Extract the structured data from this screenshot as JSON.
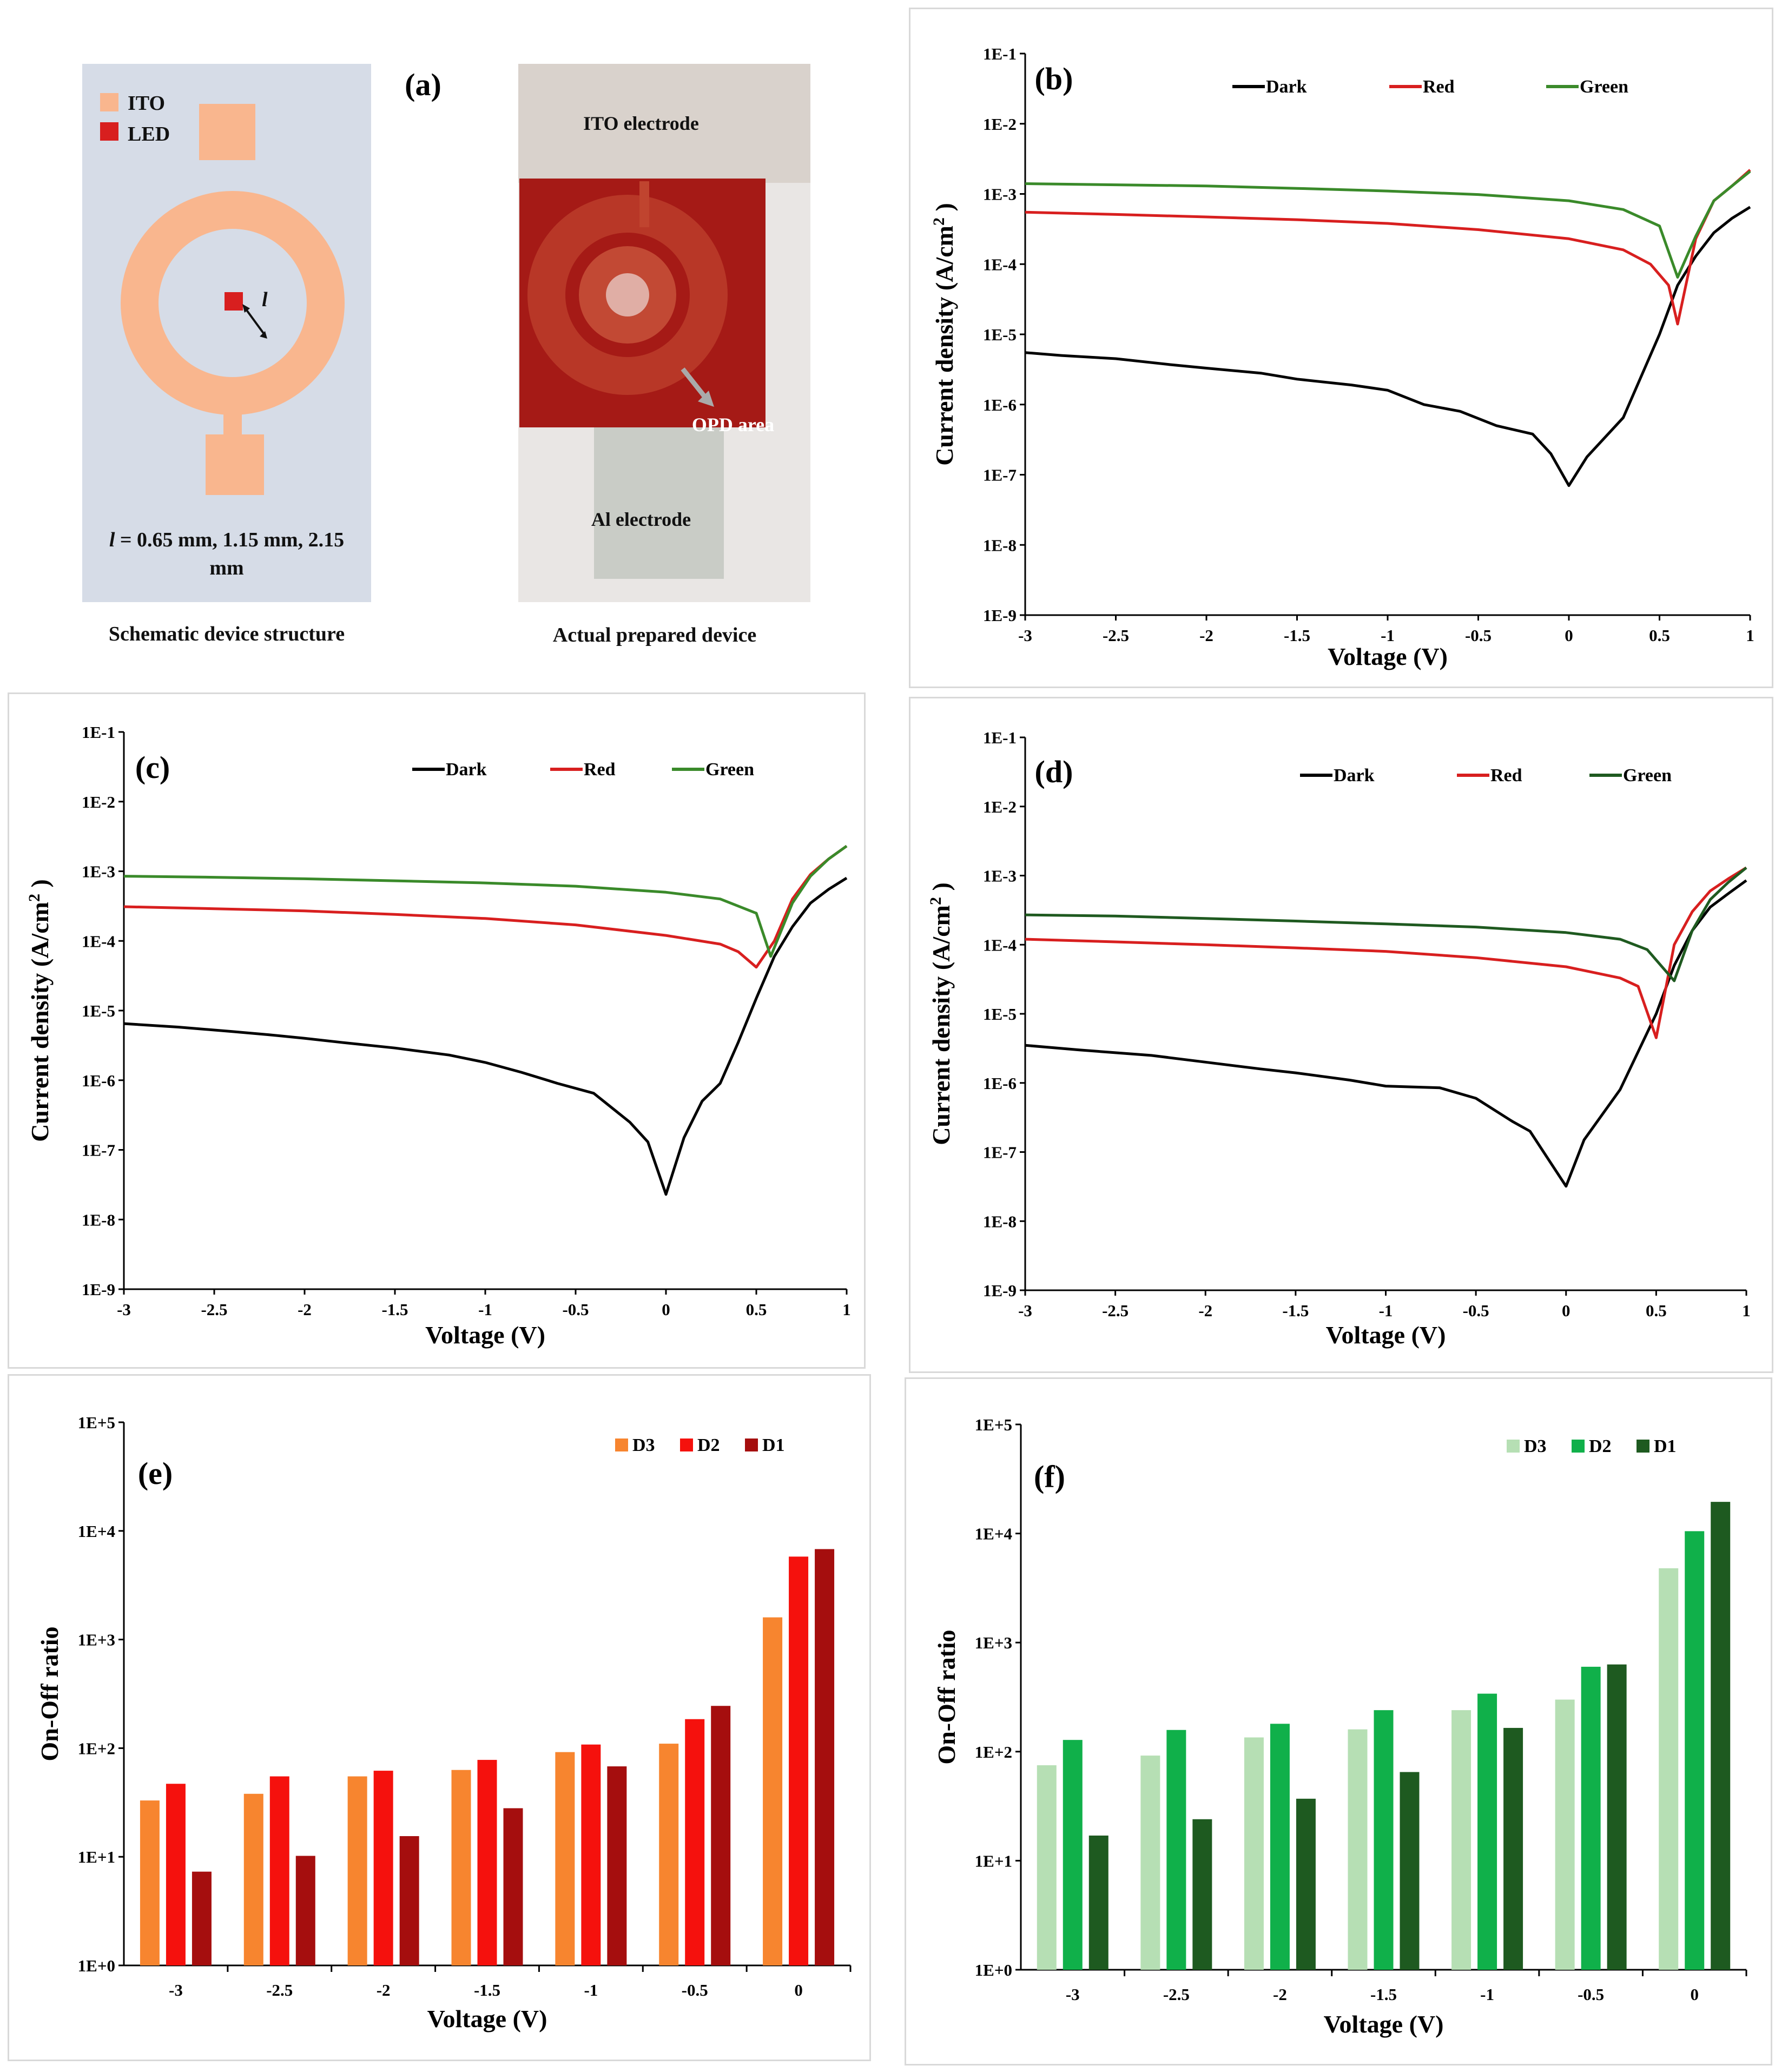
{
  "panel_a": {
    "label": "(a)",
    "legend_ito": "ITO",
    "legend_led": "LED",
    "dim_label": "l",
    "dim_text_line1": "l = 0.65 mm, 1.15 mm, 2.15",
    "dim_text_line2": "mm",
    "schematic_caption": "Schematic device structure",
    "photo_caption": "Actual prepared device",
    "photo_ito_label": "ITO electrode",
    "photo_opd_label": "OPD area",
    "photo_al_label": "Al electrode",
    "colors": {
      "ito": "#f9b68e",
      "led": "#d81f1f",
      "bg": "#d6dce7"
    }
  },
  "chart_data": [
    {
      "id": "b",
      "type": "line",
      "label": "(b)",
      "xlabel": "Voltage (V)",
      "ylabel": "Current density  (A/cm",
      "ylabel_sup": "2",
      "ylabel_close": " )",
      "xlim": [
        -3,
        1
      ],
      "xticks": [
        -3,
        -2.5,
        -2,
        -1.5,
        -1,
        -0.5,
        0,
        0.5,
        1
      ],
      "xtick_labels": [
        "-3",
        "-2.5",
        "-2",
        "-1.5",
        "-1",
        "-0.5",
        "0",
        "0.5",
        "1"
      ],
      "ytick_labels": [
        "1E-9",
        "1E-8",
        "1E-7",
        "1E-6",
        "1E-5",
        "1E-4",
        "1E-3",
        "1E-2",
        "1E-1"
      ],
      "ylim_log": [
        -9,
        -1
      ],
      "yscale": "log",
      "series": [
        {
          "name": "Dark",
          "color": "#000000",
          "x": [
            -3,
            -2.8,
            -2.5,
            -2.2,
            -2,
            -1.7,
            -1.5,
            -1.2,
            -1,
            -0.8,
            -0.6,
            -0.4,
            -0.2,
            -0.1,
            0,
            0.1,
            0.3,
            0.5,
            0.6,
            0.7,
            0.8,
            0.9,
            1.0
          ],
          "y": [
            5.5e-06,
            5e-06,
            4.5e-06,
            3.7e-06,
            3.3e-06,
            2.8e-06,
            2.3e-06,
            1.9e-06,
            1.6e-06,
            1e-06,
            8e-07,
            5e-07,
            3.8e-07,
            2e-07,
            7e-08,
            1.8e-07,
            6.5e-07,
            1e-05,
            5e-05,
            0.00013,
            0.00028,
            0.00045,
            0.00065
          ]
        },
        {
          "name": "Red",
          "color": "#d81f1f",
          "x": [
            -3,
            -2.5,
            -2,
            -1.5,
            -1,
            -0.5,
            0,
            0.3,
            0.45,
            0.55,
            0.6,
            0.7,
            0.8,
            0.9,
            1.0
          ],
          "y": [
            0.00055,
            0.00051,
            0.00047,
            0.00043,
            0.00038,
            0.00031,
            0.00023,
            0.00016,
            0.0001,
            5e-05,
            1.4e-05,
            0.00023,
            0.0008,
            0.0013,
            0.0022
          ]
        },
        {
          "name": "Green",
          "color": "#3a8a2a",
          "x": [
            -3,
            -2.5,
            -2,
            -1.5,
            -1,
            -0.5,
            0,
            0.3,
            0.5,
            0.6,
            0.7,
            0.8,
            0.9,
            1.0
          ],
          "y": [
            0.0014,
            0.00135,
            0.0013,
            0.0012,
            0.0011,
            0.00098,
            0.0008,
            0.0006,
            0.00035,
            6.5e-05,
            0.00025,
            0.0008,
            0.0013,
            0.0021
          ]
        }
      ]
    },
    {
      "id": "c",
      "type": "line",
      "label": "(c)",
      "xlabel": "Voltage (V)",
      "ylabel": "Current density  (A/cm",
      "ylabel_sup": "2",
      "ylabel_close": " )",
      "xlim": [
        -3,
        1
      ],
      "xticks": [
        -3,
        -2.5,
        -2,
        -1.5,
        -1,
        -0.5,
        0,
        0.5,
        1
      ],
      "xtick_labels": [
        "-3",
        "-2.5",
        "-2",
        "-1.5",
        "-1",
        "-0.5",
        "0",
        "0.5",
        "1"
      ],
      "ytick_labels": [
        "1E-9",
        "1E-8",
        "1E-7",
        "1E-6",
        "1E-5",
        "1E-4",
        "1E-3",
        "1E-2",
        "1E-1"
      ],
      "ylim_log": [
        -9,
        -1
      ],
      "yscale": "log",
      "series": [
        {
          "name": "Dark",
          "color": "#000000",
          "x": [
            -3,
            -2.7,
            -2.4,
            -2.2,
            -2,
            -1.8,
            -1.5,
            -1.2,
            -1,
            -0.8,
            -0.6,
            -0.4,
            -0.2,
            -0.1,
            0,
            0.1,
            0.2,
            0.3,
            0.4,
            0.5,
            0.6,
            0.7,
            0.8,
            0.9,
            1.0
          ],
          "y": [
            6.5e-06,
            5.8e-06,
            5e-06,
            4.5e-06,
            4e-06,
            3.5e-06,
            2.9e-06,
            2.3e-06,
            1.8e-06,
            1.3e-06,
            9e-07,
            6.5e-07,
            2.5e-07,
            1.3e-07,
            2.3e-08,
            1.5e-07,
            5e-07,
            9e-07,
            3.5e-06,
            1.5e-05,
            6e-05,
            0.00016,
            0.00035,
            0.00055,
            0.0008
          ]
        },
        {
          "name": "Red",
          "color": "#d81f1f",
          "x": [
            -3,
            -2.5,
            -2,
            -1.5,
            -1,
            -0.5,
            0,
            0.3,
            0.4,
            0.5,
            0.6,
            0.7,
            0.8,
            0.9,
            1.0
          ],
          "y": [
            0.00031,
            0.00029,
            0.00027,
            0.00024,
            0.00021,
            0.00017,
            0.00012,
            9e-05,
            7e-05,
            4.2e-05,
            0.0001,
            0.0004,
            0.0009,
            0.0015,
            0.0023
          ]
        },
        {
          "name": "Green",
          "color": "#3a8a2a",
          "x": [
            -3,
            -2.5,
            -2,
            -1.5,
            -1,
            -0.5,
            0,
            0.3,
            0.5,
            0.58,
            0.7,
            0.8,
            0.9,
            1.0
          ],
          "y": [
            0.00085,
            0.00082,
            0.00078,
            0.00073,
            0.00068,
            0.00061,
            0.0005,
            0.0004,
            0.00025,
            6e-05,
            0.00035,
            0.00085,
            0.0015,
            0.0023
          ]
        }
      ]
    },
    {
      "id": "d",
      "type": "line",
      "label": "(d)",
      "xlabel": "Voltage (V)",
      "ylabel": "Current density  (A/cm",
      "ylabel_sup": "2",
      "ylabel_close": " )",
      "xlim": [
        -3,
        1
      ],
      "xticks": [
        -3,
        -2.5,
        -2,
        -1.5,
        -1,
        -0.5,
        0,
        0.5,
        1
      ],
      "xtick_labels": [
        "-3",
        "-2.5",
        "-2",
        "-1.5",
        "-1",
        "-0.5",
        "0",
        "0.5",
        "1"
      ],
      "ytick_labels": [
        "1E-9",
        "1E-8",
        "1E-7",
        "1E-6",
        "1E-5",
        "1E-4",
        "1E-3",
        "1E-2",
        "1E-1"
      ],
      "ylim_log": [
        -9,
        -1
      ],
      "yscale": "log",
      "series": [
        {
          "name": "Dark",
          "color": "#000000",
          "x": [
            -3,
            -2.7,
            -2.3,
            -2,
            -1.7,
            -1.5,
            -1.2,
            -1,
            -0.7,
            -0.5,
            -0.3,
            -0.2,
            -0.1,
            0,
            0.1,
            0.3,
            0.5,
            0.6,
            0.7,
            0.8,
            0.9,
            1.0
          ],
          "y": [
            3.5e-06,
            3e-06,
            2.5e-06,
            2e-06,
            1.6e-06,
            1.4e-06,
            1.1e-06,
            9e-07,
            8.5e-07,
            6e-07,
            2.8e-07,
            2e-07,
            8e-08,
            3.2e-08,
            1.5e-07,
            8e-07,
            1e-05,
            5e-05,
            0.00016,
            0.00035,
            0.00055,
            0.00085
          ]
        },
        {
          "name": "Red",
          "color": "#d81f1f",
          "x": [
            -3,
            -2.5,
            -2,
            -1.5,
            -1,
            -0.5,
            0,
            0.3,
            0.4,
            0.5,
            0.6,
            0.7,
            0.8,
            0.9,
            1.0
          ],
          "y": [
            0.00012,
            0.00011,
            0.0001,
            9e-05,
            8e-05,
            6.5e-05,
            4.8e-05,
            3.3e-05,
            2.5e-05,
            4.5e-06,
            0.0001,
            0.0003,
            0.0006,
            0.0009,
            0.0013
          ]
        },
        {
          "name": "Green",
          "color": "#1f5a20",
          "x": [
            -3,
            -2.5,
            -2,
            -1.5,
            -1,
            -0.5,
            0,
            0.3,
            0.45,
            0.6,
            0.7,
            0.8,
            0.9,
            1.0
          ],
          "y": [
            0.00027,
            0.00026,
            0.00024,
            0.00022,
            0.0002,
            0.00018,
            0.00015,
            0.00012,
            8.5e-05,
            3e-05,
            0.00016,
            0.00045,
            0.0008,
            0.0013
          ]
        }
      ]
    },
    {
      "id": "e",
      "type": "bar",
      "label": "(e)",
      "xlabel": "Voltage (V)",
      "ylabel": "On-Off ratio",
      "categories": [
        "-3",
        "-2.5",
        "-2",
        "-1.5",
        "-1",
        "-0.5",
        "0"
      ],
      "ytick_labels": [
        "1E+0",
        "1E+1",
        "1E+2",
        "1E+3",
        "1E+4",
        "1E+5"
      ],
      "ylim_log": [
        0,
        5
      ],
      "yscale": "log",
      "series": [
        {
          "name": "D3",
          "color": "#f7852f",
          "values": [
            33,
            38,
            55,
            63,
            92,
            110,
            1600
          ]
        },
        {
          "name": "D2",
          "color": "#f5110d",
          "values": [
            47,
            55,
            62,
            78,
            108,
            185,
            5800
          ]
        },
        {
          "name": "D1",
          "color": "#a50e0e",
          "values": [
            7.3,
            10.2,
            15.5,
            28,
            68,
            245,
            6800
          ]
        }
      ]
    },
    {
      "id": "f",
      "type": "bar",
      "label": "(f)",
      "xlabel": "Voltage (V)",
      "ylabel": "On-Off ratio",
      "categories": [
        "-3",
        "-2.5",
        "-2",
        "-1.5",
        "-1",
        "-0.5",
        "0"
      ],
      "ytick_labels": [
        "1E+0",
        "1E+1",
        "1E+2",
        "1E+3",
        "1E+4",
        "1E+5"
      ],
      "ylim_log": [
        0,
        5
      ],
      "yscale": "log",
      "series": [
        {
          "name": "D3",
          "color": "#b6dfb4",
          "values": [
            75,
            92,
            135,
            160,
            240,
            300,
            4800
          ]
        },
        {
          "name": "D2",
          "color": "#10b04a",
          "values": [
            128,
            158,
            180,
            240,
            340,
            600,
            10500
          ]
        },
        {
          "name": "D1",
          "color": "#1e5a20",
          "values": [
            17,
            24,
            37,
            65,
            165,
            630,
            19500
          ]
        }
      ]
    }
  ]
}
